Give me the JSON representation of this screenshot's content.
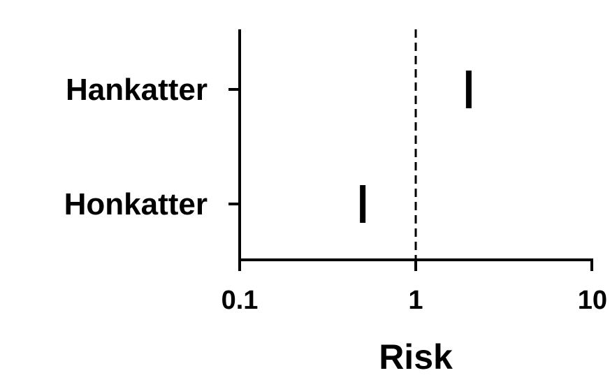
{
  "chart_data": {
    "type": "scatter",
    "xscale": "log",
    "xlim": [
      0.1,
      10
    ],
    "xticks": [
      0.1,
      1,
      10
    ],
    "tick_labels": [
      "0.1",
      "1",
      "10"
    ],
    "xlabel": "Risk",
    "reference_line": {
      "x": 1,
      "style": "dashed"
    },
    "categories": [
      "Hankatter",
      "Honkatter"
    ],
    "values": [
      2.0,
      0.5
    ],
    "grid": false,
    "color": "#000000"
  }
}
